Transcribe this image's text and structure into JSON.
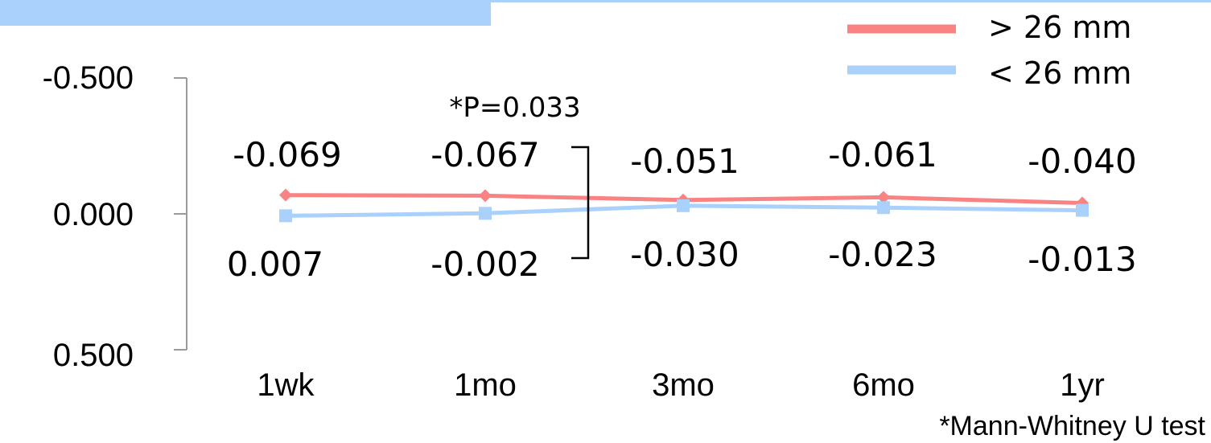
{
  "chart_data": {
    "type": "line",
    "categories": [
      "1wk",
      "1mo",
      "3mo",
      "6mo",
      "1yr"
    ],
    "y_ticks": [
      "-0.500",
      "0.000",
      "0.500"
    ],
    "ylim": [
      -0.5,
      0.5
    ],
    "y_inverted": true,
    "grid": false,
    "legend_position": "top-right",
    "series": [
      {
        "name": "> 26 mm",
        "values": [
          -0.069,
          -0.067,
          -0.051,
          -0.061,
          -0.04
        ],
        "labels": [
          "-0.069",
          "-0.067",
          "-0.051",
          "-0.061",
          "-0.040"
        ],
        "color": "#f98283",
        "marker": "diamond"
      },
      {
        "name": "< 26 mm",
        "values": [
          0.007,
          -0.002,
          -0.03,
          -0.023,
          -0.013
        ],
        "labels": [
          "0.007",
          "-0.002",
          "-0.030",
          "-0.023",
          "-0.013"
        ],
        "color": "#a9d1fb",
        "marker": "square"
      }
    ],
    "annotations": {
      "significance": "*P=0.033",
      "footnote": "*Mann-Whitney U test"
    }
  },
  "colors": {
    "header_bar": "#a9d1fb",
    "header_rule": "#a9d1fb",
    "axis": "#9a9a9a",
    "text": "#000000"
  }
}
